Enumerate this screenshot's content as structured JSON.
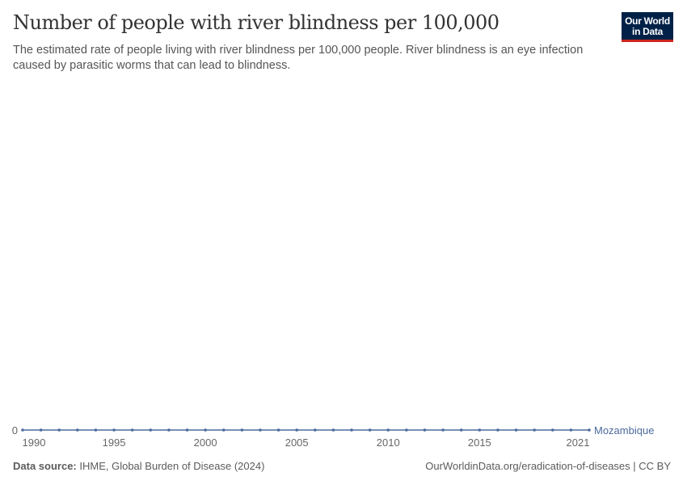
{
  "header": {
    "title": "Number of people with river blindness per 100,000",
    "subtitle": "The estimated rate of people living with river blindness per 100,000 people. River blindness is an eye infection caused by parasitic worms that can lead to blindness.",
    "logo": "Our World in Data"
  },
  "chart_data": {
    "type": "line",
    "title": "Number of people with river blindness per 100,000",
    "x": [
      1990,
      1991,
      1992,
      1993,
      1994,
      1995,
      1996,
      1997,
      1998,
      1999,
      2000,
      2001,
      2002,
      2003,
      2004,
      2005,
      2006,
      2007,
      2008,
      2009,
      2010,
      2011,
      2012,
      2013,
      2014,
      2015,
      2016,
      2017,
      2018,
      2019,
      2020,
      2021
    ],
    "series": [
      {
        "name": "Mozambique",
        "values": [
          0,
          0,
          0,
          0,
          0,
          0,
          0,
          0,
          0,
          0,
          0,
          0,
          0,
          0,
          0,
          0,
          0,
          0,
          0,
          0,
          0,
          0,
          0,
          0,
          0,
          0,
          0,
          0,
          0,
          0,
          0,
          0
        ],
        "color": "#4c6a9c"
      }
    ],
    "x_ticks": [
      "1990",
      "1995",
      "2000",
      "2005",
      "2010",
      "2015",
      "2021"
    ],
    "y_ticks": [
      "0"
    ],
    "xlim": [
      1990,
      2021
    ],
    "grid": false,
    "legend": "end-of-line label"
  },
  "footer": {
    "source_label": "Data source:",
    "source": "IHME, Global Burden of Disease (2024)",
    "url": "OurWorldinData.org/eradication-of-diseases | CC BY"
  }
}
